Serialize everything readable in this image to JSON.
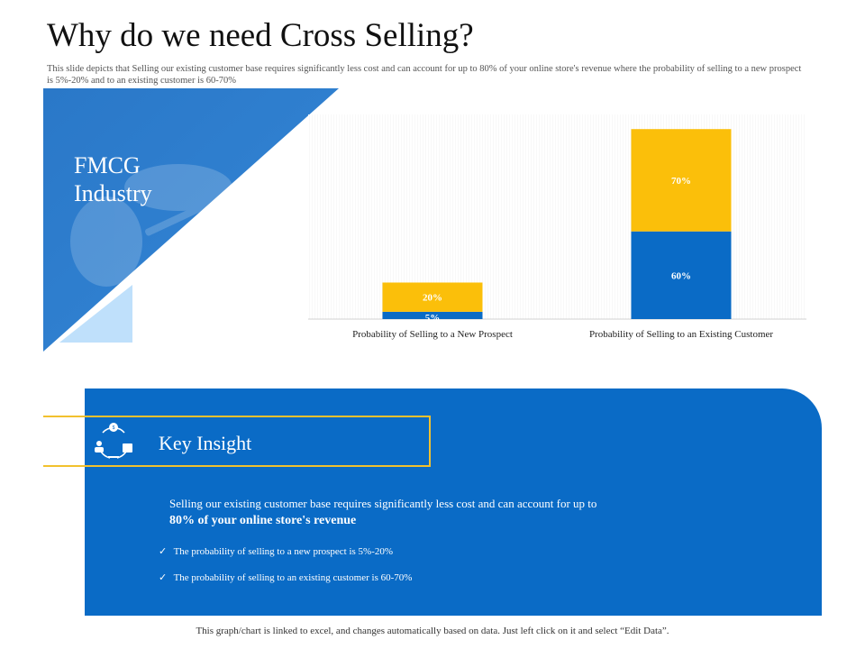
{
  "title": "Why do we need Cross Selling?",
  "subtitle": "This slide depicts that Selling our existing customer base requires significantly less cost and can account for up to 80% of your online store's revenue where the probability of selling to a new prospect is 5%-20% and to an existing customer is 60-70%",
  "hero": {
    "label_line1": "FMCG",
    "label_line2": "Industry",
    "colors": {
      "primary": "#1f6fc4",
      "light": "#bfe0fb"
    }
  },
  "chart_data": {
    "type": "bar",
    "stacked": true,
    "categories": [
      "Probability of Selling to a New Prospect",
      "Probability of Selling to an Existing Customer"
    ],
    "series": [
      {
        "values": [
          5,
          60
        ],
        "labels": [
          "5%",
          "60%"
        ],
        "color": "#0a6bc6"
      },
      {
        "values": [
          20,
          70
        ],
        "labels": [
          "20%",
          "70%"
        ],
        "color": "#fbbf0a"
      }
    ],
    "ylim": [
      0,
      140
    ],
    "grid": false
  },
  "insight": {
    "title": "Key Insight",
    "icon": "customer-cycle-icon",
    "body_text": "Selling our existing customer base requires significantly less cost and can account for up to",
    "body_emphasis": "80% of your online store's revenue",
    "bullets": [
      "The probability of selling to a new prospect is 5%-20%",
      "The probability of selling to an existing customer is 60-70%"
    ],
    "bullet_icon": "check-icon",
    "colors": {
      "panel": "#0a6bc6",
      "accent": "#f2c12e"
    }
  },
  "footer": "This graph/chart is linked to excel, and changes automatically based on data. Just left click on it and select “Edit Data”."
}
